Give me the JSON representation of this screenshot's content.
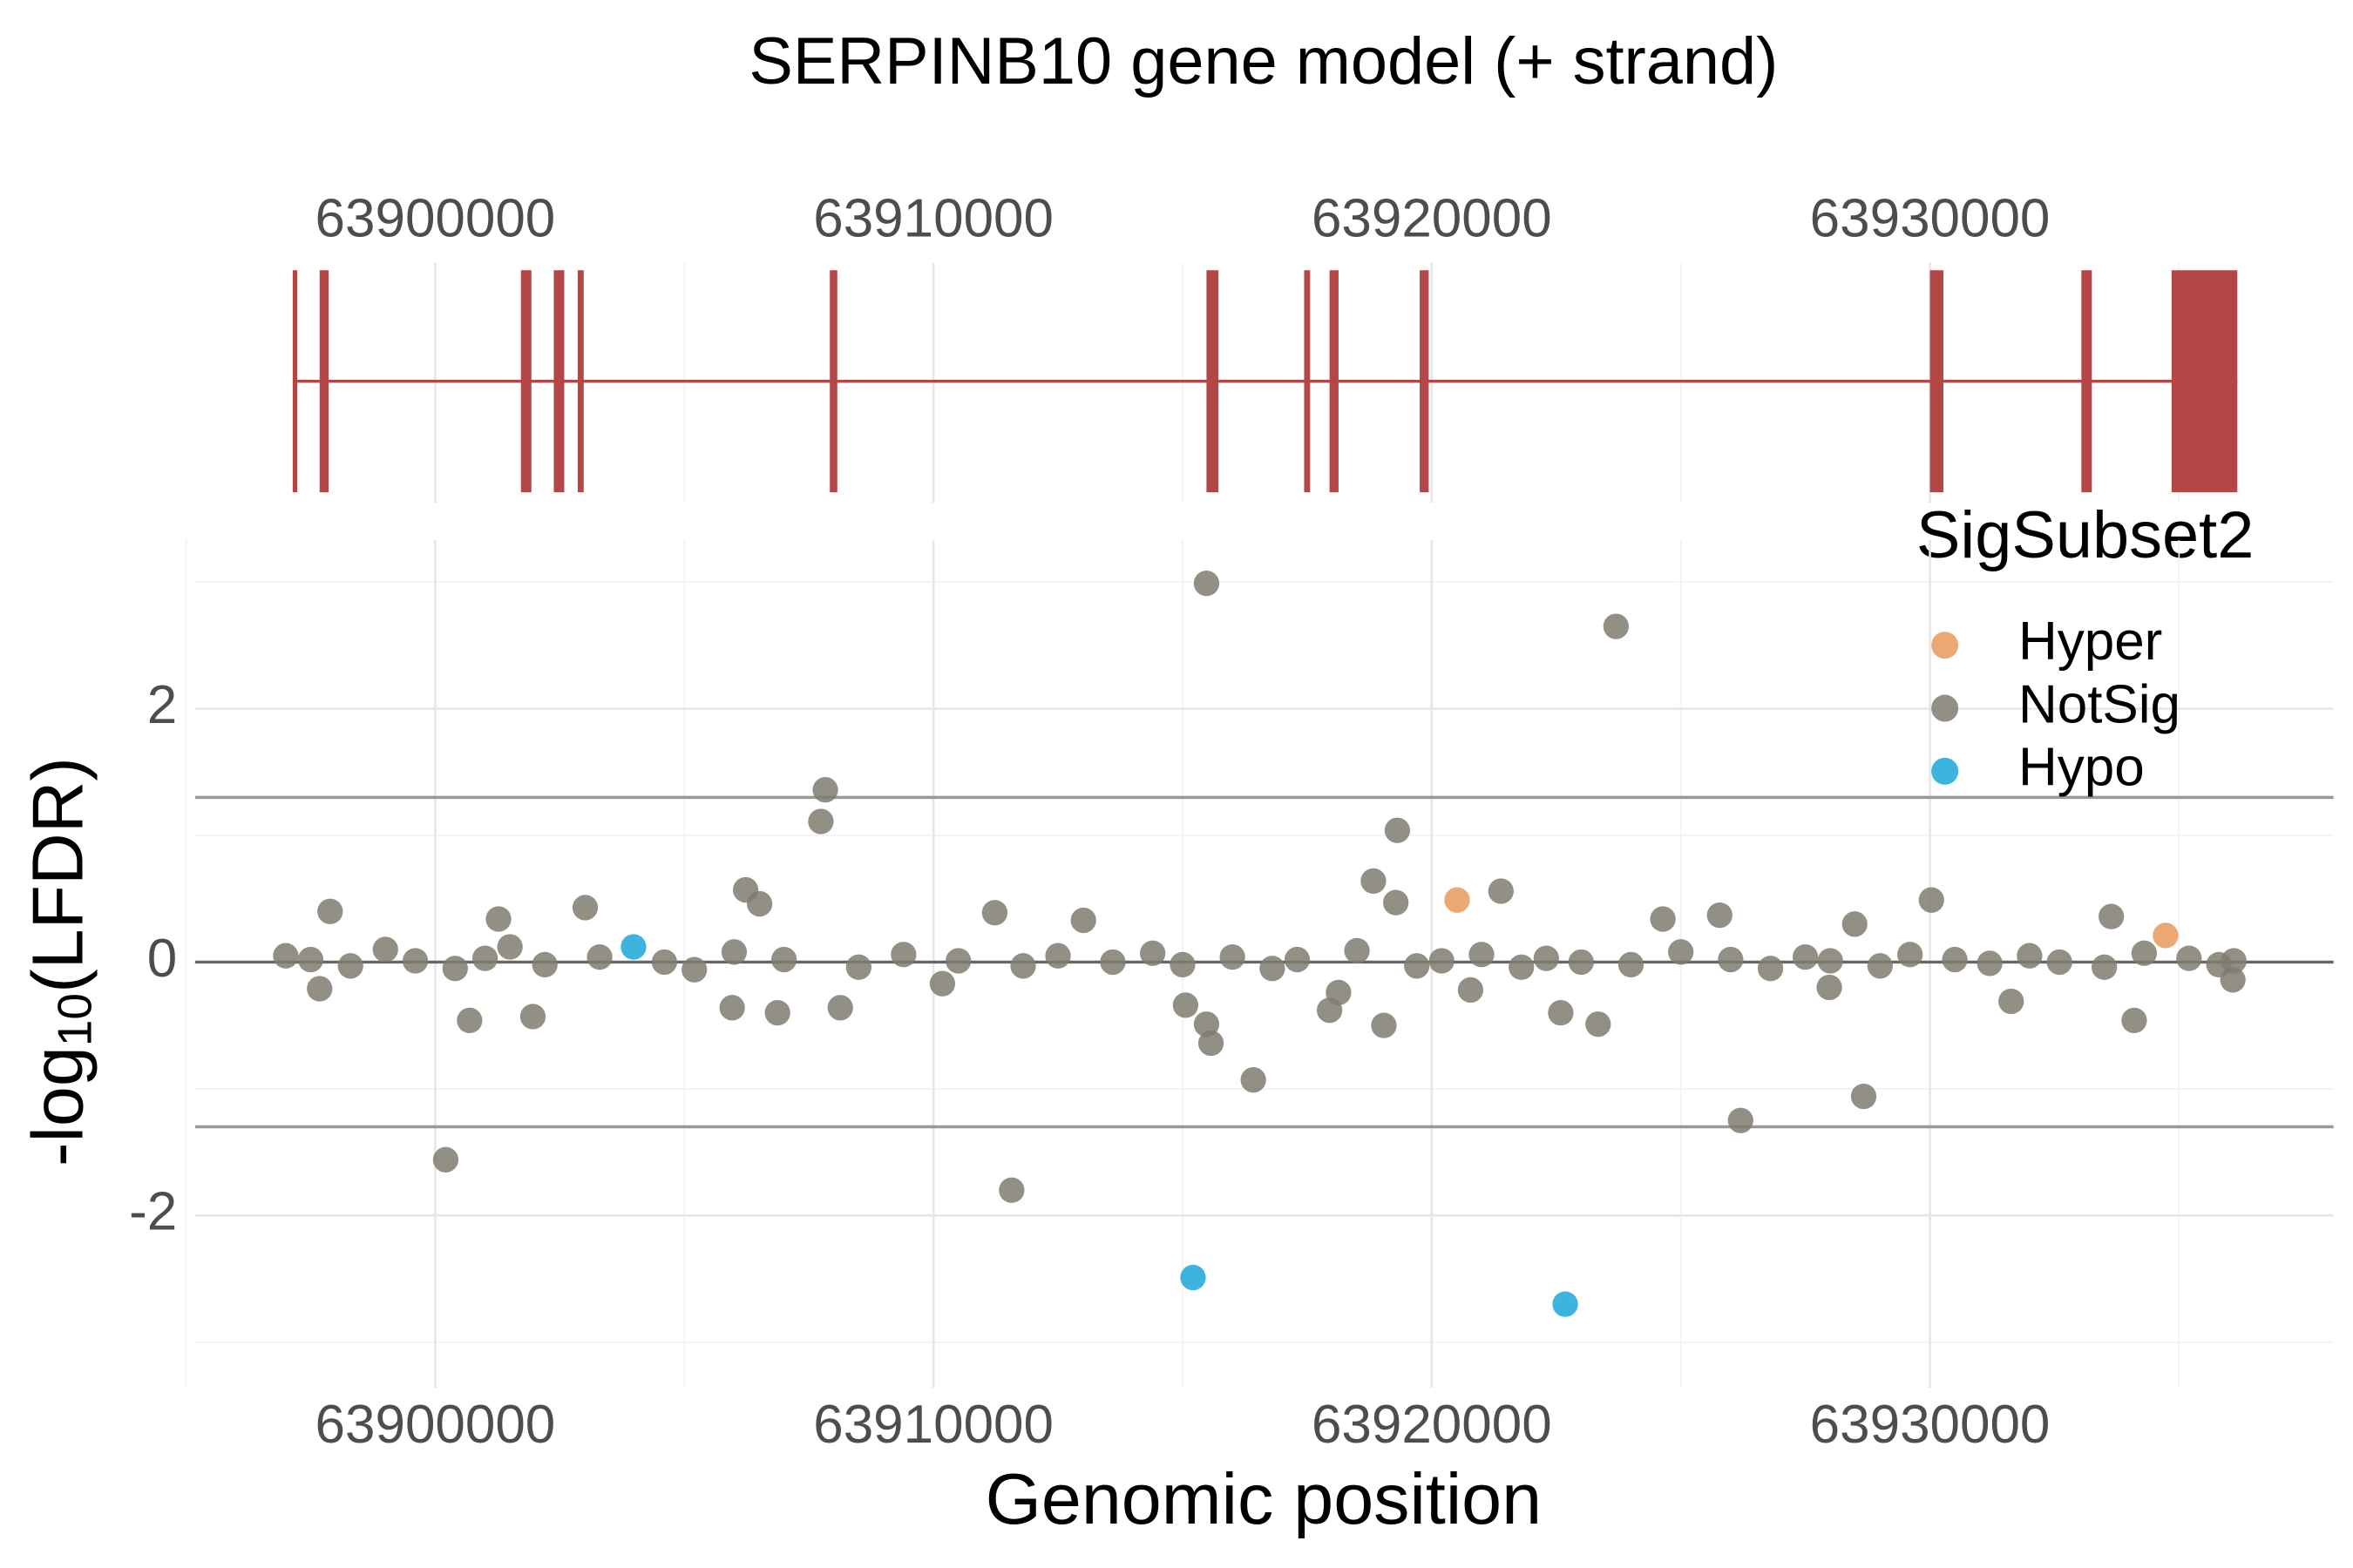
{
  "chart_data": [
    {
      "type": "gene-model",
      "title": "SERPINB10 gene model (+ strand)",
      "color": "#b34747",
      "xlim": [
        63895180,
        63938100
      ],
      "xticks": [
        63900000,
        63910000,
        63920000,
        63930000
      ],
      "xminorticks": [
        63905000,
        63915000,
        63925000,
        63935000
      ],
      "exons": [
        [
          63897140,
          63897230
        ],
        [
          63897680,
          63897860
        ],
        [
          63901720,
          63901930
        ],
        [
          63902380,
          63902590
        ],
        [
          63902860,
          63902980
        ],
        [
          63907920,
          63908070
        ],
        [
          63915480,
          63915720
        ],
        [
          63917440,
          63917560
        ],
        [
          63917950,
          63918130
        ],
        [
          63919760,
          63919940
        ],
        [
          63930000,
          63930270
        ],
        [
          63933040,
          63933250
        ],
        [
          63934850,
          63936170
        ]
      ]
    },
    {
      "type": "scatter",
      "xlabel": "Genomic position",
      "ylabel": {
        "prefix": "-log",
        "sub": "10",
        "suffix": "(LFDR)"
      },
      "legend_title": "SigSubset2",
      "xlim": [
        63895180,
        63938100
      ],
      "xticks": [
        63900000,
        63910000,
        63920000,
        63930000
      ],
      "xminorticks": [
        63895000,
        63905000,
        63915000,
        63925000,
        63935000
      ],
      "ylim": [
        -3.36,
        3.33
      ],
      "yticks": [
        -2,
        0,
        2
      ],
      "yminorticks": [
        -3,
        -1,
        1,
        3
      ],
      "hlines": [
        -1.3,
        0,
        1.3
      ],
      "grid": true,
      "series": [
        {
          "name": "Hyper",
          "color": "#e8995a",
          "x": [
            63920510,
            63934730
          ],
          "y": [
            0.49,
            0.21
          ]
        },
        {
          "name": "NotSig",
          "color": "#7f7b6e",
          "x": [
            63915480,
            63923700,
            63907830,
            63907740,
            63919310,
            63918830,
            63919280,
            63921390,
            63906230,
            63906510,
            63897890,
            63901270,
            63903010,
            63900210,
            63911570,
            63916420,
            63926200,
            63928670,
            63915570,
            63915480,
            63915060,
            63923340,
            63922590,
            63919040,
            63934100,
            63924640,
            63925780,
            63930030,
            63933640,
            63928490,
            63906870,
            63905960,
            63900690,
            63897680,
            63901960,
            63908130,
            63910180,
            63911230,
            63913010,
            63936080,
            63931630,
            63927980,
            63920780,
            63918130,
            63917950,
            63897000,
            63897500,
            63898300,
            63899000,
            63899600,
            63900400,
            63901000,
            63901500,
            63902200,
            63903300,
            63904600,
            63905200,
            63906000,
            63907000,
            63908500,
            63909400,
            63910500,
            63911800,
            63912500,
            63913600,
            63914400,
            63915000,
            63916000,
            63916800,
            63917300,
            63918500,
            63919700,
            63920200,
            63921000,
            63921800,
            63922300,
            63923000,
            63924000,
            63925000,
            63926000,
            63926800,
            63927500,
            63928000,
            63929000,
            63929600,
            63930500,
            63931200,
            63932000,
            63932600,
            63933500,
            63934300,
            63935200,
            63935800,
            63936100
          ],
          "y": [
            2.99,
            2.65,
            1.36,
            1.11,
            1.04,
            0.64,
            0.47,
            0.56,
            0.57,
            0.46,
            0.4,
            0.34,
            0.43,
            -1.56,
            -1.8,
            -0.93,
            -1.25,
            -1.06,
            -0.64,
            -0.49,
            -0.34,
            -0.49,
            -0.4,
            -0.5,
            -0.46,
            0.34,
            0.37,
            0.49,
            0.36,
            0.3,
            -0.4,
            -0.36,
            -0.46,
            -0.21,
            -0.43,
            -0.36,
            -0.17,
            0.39,
            0.33,
            -0.14,
            -0.31,
            -0.2,
            -0.22,
            -0.24,
            -0.38,
            0.05,
            0.02,
            -0.03,
            0.1,
            0.01,
            -0.05,
            0.03,
            0.12,
            -0.02,
            0.04,
            0.0,
            -0.06,
            0.08,
            0.02,
            -0.04,
            0.06,
            0.01,
            -0.03,
            0.05,
            0.0,
            0.07,
            -0.02,
            0.04,
            -0.05,
            0.02,
            0.09,
            -0.03,
            0.01,
            0.06,
            -0.04,
            0.03,
            0.0,
            -0.02,
            0.08,
            0.02,
            -0.05,
            0.04,
            0.01,
            -0.03,
            0.06,
            0.02,
            -0.01,
            0.05,
            0.0,
            -0.04,
            0.07,
            0.03,
            -0.02,
            0.01
          ]
        },
        {
          "name": "Hypo",
          "color": "#1aa7d9",
          "x": [
            63903980,
            63915210,
            63922680
          ],
          "y": [
            0.12,
            -2.49,
            -2.7
          ]
        }
      ]
    }
  ]
}
